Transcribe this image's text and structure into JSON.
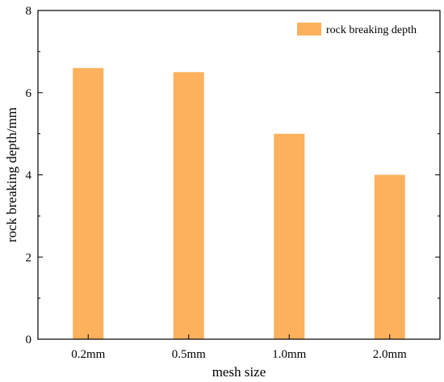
{
  "chart_data": {
    "type": "bar",
    "categories": [
      "0.2mm",
      "0.5mm",
      "1.0mm",
      "2.0mm"
    ],
    "series": [
      {
        "name": "rock breaking depth",
        "values": [
          6.6,
          6.5,
          5.0,
          4.0
        ]
      }
    ],
    "xlabel": "mesh size",
    "ylabel": "rock breaking depth/mm",
    "ylim": [
      0,
      8
    ],
    "yticks": [
      "0",
      "2",
      "4",
      "6",
      "8"
    ],
    "grid": false,
    "legend_position": "top-right",
    "bar_color": "#FDB15C"
  }
}
